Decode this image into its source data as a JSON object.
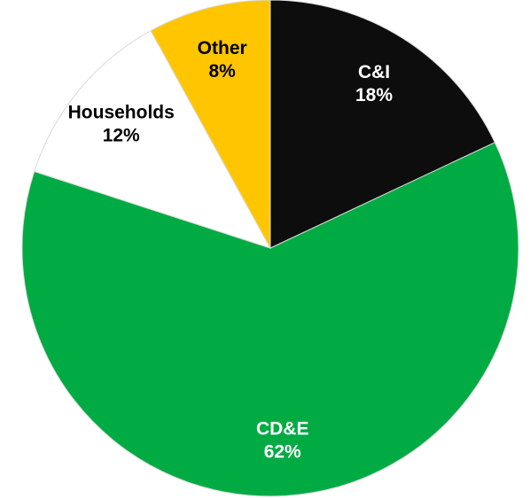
{
  "chart_data": {
    "type": "pie",
    "categories": [
      "C&I",
      "CD&E",
      "Households",
      "Other"
    ],
    "values": [
      18,
      62,
      12,
      8
    ],
    "value_labels": [
      "18%",
      "62%",
      "12%",
      "8%"
    ],
    "colors": [
      "#0d0d0d",
      "#00ab43",
      "#ffffff",
      "#ffc600"
    ]
  }
}
